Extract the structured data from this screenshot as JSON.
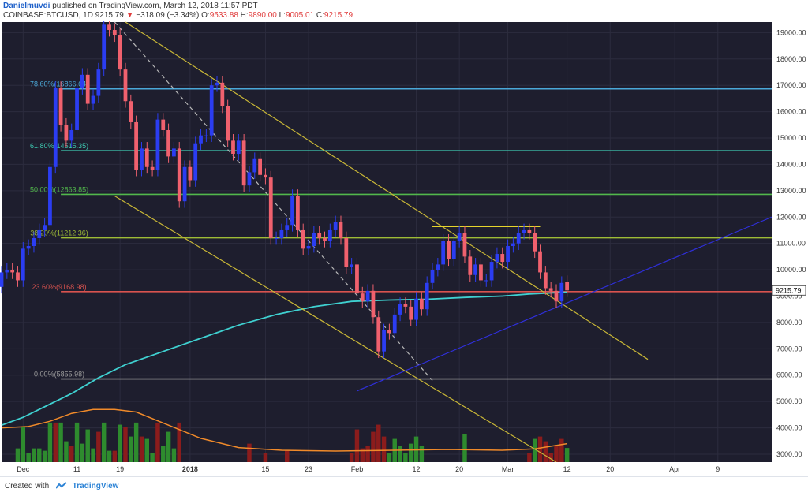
{
  "header": {
    "author": "Danielmuvdi",
    "published_text": "published on TradingView.com, March 12, 2018 11:57 PDT",
    "symbol": "COINBASE:BTCUSD, 1D",
    "last": "9215.79",
    "change": "−318.09 (−3.34%)",
    "o_label": "O:",
    "o": "9533.88",
    "h_label": "H:",
    "h": "9890.00",
    "l_label": "L:",
    "l": "9005.01",
    "c_label": "C:",
    "c": "9215.79"
  },
  "footer": {
    "created_with": "Created with",
    "brand": "TradingView"
  },
  "chart_data": {
    "type": "candlestick",
    "symbol": "COINBASE:BTCUSD",
    "interval": "1D",
    "y_ticks": [
      3000,
      4000,
      5000,
      6000,
      7000,
      8000,
      9000,
      10000,
      11000,
      12000,
      13000,
      14000,
      15000,
      16000,
      17000,
      18000,
      19000
    ],
    "ylim": [
      2700,
      19400
    ],
    "x_ticks": [
      {
        "label": "Dec",
        "date": "2017-12-01"
      },
      {
        "label": "11",
        "date": "2017-12-11"
      },
      {
        "label": "19",
        "date": "2017-12-19"
      },
      {
        "label": "2018",
        "date": "2018-01-01"
      },
      {
        "label": "15",
        "date": "2018-01-15"
      },
      {
        "label": "23",
        "date": "2018-01-23"
      },
      {
        "label": "Feb",
        "date": "2018-02-01"
      },
      {
        "label": "12",
        "date": "2018-02-12"
      },
      {
        "label": "20",
        "date": "2018-02-20"
      },
      {
        "label": "Mar",
        "date": "2018-03-01"
      },
      {
        "label": "12",
        "date": "2018-03-12"
      },
      {
        "label": "20",
        "date": "2018-03-20"
      },
      {
        "label": "Apr",
        "date": "2018-04-01"
      },
      {
        "label": "9",
        "date": "2018-04-09"
      }
    ],
    "xlim": [
      "2017-11-27",
      "2018-04-19"
    ],
    "last_price_label": "9215.79",
    "fib_levels": [
      {
        "label": "78.60%(16866.64)",
        "value": 16866.64,
        "color": "#4aa8d8"
      },
      {
        "label": "61.80%(14515.35)",
        "value": 14515.35,
        "color": "#3ec9b2"
      },
      {
        "label": "50.00%(12863.85)",
        "value": 12863.85,
        "color": "#52b84c"
      },
      {
        "label": "38.20%(11212.36)",
        "value": 11212.36,
        "color": "#9ebc36"
      },
      {
        "label": "23.60%(9168.98)",
        "value": 9168.98,
        "color": "#d9534f"
      },
      {
        "label": "0.00%(5855.98)",
        "value": 5855.98,
        "color": "#9a9a9a"
      }
    ],
    "trendlines": [
      {
        "name": "upper-channel",
        "color": "#c9b737",
        "from": [
          "2017-12-20",
          19400
        ],
        "to": [
          "2018-03-27",
          6600
        ]
      },
      {
        "name": "lower-channel",
        "color": "#c9b737",
        "from": [
          "2017-12-18",
          12800
        ],
        "to": [
          "2018-03-10",
          2700
        ]
      },
      {
        "name": "dashed-trend",
        "color": "#b8b8b8",
        "from": [
          "2017-12-18",
          19400
        ],
        "to": [
          "2018-02-15",
          5800
        ]
      },
      {
        "name": "support",
        "color": "#2f2fd8",
        "from": [
          "2018-02-01",
          5400
        ],
        "to": [
          "2018-04-19",
          12000
        ]
      },
      {
        "name": "resistance",
        "color": "#e6d52c",
        "from": [
          "2018-02-15",
          11650
        ],
        "to": [
          "2018-03-07",
          11650
        ]
      }
    ],
    "ma_price": [
      [
        "2017-11-27",
        4100
      ],
      [
        "2017-12-01",
        4400
      ],
      [
        "2017-12-05",
        4800
      ],
      [
        "2017-12-10",
        5300
      ],
      [
        "2017-12-15",
        5900
      ],
      [
        "2017-12-20",
        6400
      ],
      [
        "2017-12-27",
        6900
      ],
      [
        "2018-01-03",
        7400
      ],
      [
        "2018-01-10",
        7900
      ],
      [
        "2018-01-17",
        8300
      ],
      [
        "2018-01-24",
        8600
      ],
      [
        "2018-01-31",
        8800
      ],
      [
        "2018-02-07",
        8850
      ],
      [
        "2018-02-14",
        8880
      ],
      [
        "2018-02-21",
        8950
      ],
      [
        "2018-02-28",
        9000
      ],
      [
        "2018-03-05",
        9080
      ],
      [
        "2018-03-12",
        9150
      ]
    ],
    "volume_ma": [
      [
        "2017-11-27",
        4000
      ],
      [
        "2017-12-02",
        4050
      ],
      [
        "2017-12-06",
        4250
      ],
      [
        "2017-12-10",
        4550
      ],
      [
        "2017-12-14",
        4700
      ],
      [
        "2017-12-18",
        4700
      ],
      [
        "2017-12-22",
        4600
      ],
      [
        "2017-12-28",
        4100
      ],
      [
        "2018-01-03",
        3600
      ],
      [
        "2018-01-10",
        3250
      ],
      [
        "2018-01-18",
        3150
      ],
      [
        "2018-01-28",
        3120
      ],
      [
        "2018-02-08",
        3150
      ],
      [
        "2018-02-18",
        3180
      ],
      [
        "2018-02-28",
        3150
      ],
      [
        "2018-03-06",
        3200
      ],
      [
        "2018-03-12",
        3400
      ]
    ],
    "candles": [
      {
        "d": "2017-11-27",
        "o": 9350,
        "c": 9900
      },
      {
        "d": "2017-11-28",
        "o": 9900,
        "c": 10000
      },
      {
        "d": "2017-11-29",
        "o": 10000,
        "c": 9900
      },
      {
        "d": "2017-11-30",
        "o": 9900,
        "c": 9600
      },
      {
        "d": "2017-12-01",
        "o": 9600,
        "c": 10800
      },
      {
        "d": "2017-12-02",
        "o": 10800,
        "c": 10900
      },
      {
        "d": "2017-12-03",
        "o": 10900,
        "c": 11200
      },
      {
        "d": "2017-12-04",
        "o": 11200,
        "c": 11500
      },
      {
        "d": "2017-12-05",
        "o": 11500,
        "c": 11700
      },
      {
        "d": "2017-12-06",
        "o": 11700,
        "c": 13900
      },
      {
        "d": "2017-12-07",
        "o": 13900,
        "c": 16900
      },
      {
        "d": "2017-12-08",
        "o": 16900,
        "c": 15500
      },
      {
        "d": "2017-12-09",
        "o": 15500,
        "c": 14900
      },
      {
        "d": "2017-12-10",
        "o": 14900,
        "c": 15300
      },
      {
        "d": "2017-12-11",
        "o": 15300,
        "c": 16900
      },
      {
        "d": "2017-12-12",
        "o": 16900,
        "c": 17400
      },
      {
        "d": "2017-12-13",
        "o": 17400,
        "c": 16300
      },
      {
        "d": "2017-12-14",
        "o": 16300,
        "c": 16600
      },
      {
        "d": "2017-12-15",
        "o": 16600,
        "c": 17600
      },
      {
        "d": "2017-12-16",
        "o": 17600,
        "c": 19300
      },
      {
        "d": "2017-12-17",
        "o": 19300,
        "c": 19100
      },
      {
        "d": "2017-12-18",
        "o": 19100,
        "c": 18900
      },
      {
        "d": "2017-12-19",
        "o": 18900,
        "c": 17600
      },
      {
        "d": "2017-12-20",
        "o": 17600,
        "c": 16400
      },
      {
        "d": "2017-12-21",
        "o": 16400,
        "c": 15600
      },
      {
        "d": "2017-12-22",
        "o": 15600,
        "c": 13800
      },
      {
        "d": "2017-12-23",
        "o": 13800,
        "c": 14600
      },
      {
        "d": "2017-12-24",
        "o": 14600,
        "c": 13900
      },
      {
        "d": "2017-12-25",
        "o": 13900,
        "c": 13800
      },
      {
        "d": "2017-12-26",
        "o": 13800,
        "c": 15700
      },
      {
        "d": "2017-12-27",
        "o": 15700,
        "c": 15300
      },
      {
        "d": "2017-12-28",
        "o": 15300,
        "c": 14300
      },
      {
        "d": "2017-12-29",
        "o": 14300,
        "c": 14600
      },
      {
        "d": "2017-12-30",
        "o": 14600,
        "c": 12600
      },
      {
        "d": "2017-12-31",
        "o": 12600,
        "c": 13900
      },
      {
        "d": "2018-01-01",
        "o": 13900,
        "c": 13400
      },
      {
        "d": "2018-01-02",
        "o": 13400,
        "c": 14800
      },
      {
        "d": "2018-01-03",
        "o": 14800,
        "c": 15100
      },
      {
        "d": "2018-01-04",
        "o": 15100,
        "c": 15100
      },
      {
        "d": "2018-01-05",
        "o": 15100,
        "c": 17000
      },
      {
        "d": "2018-01-06",
        "o": 17000,
        "c": 17100
      },
      {
        "d": "2018-01-07",
        "o": 17100,
        "c": 16200
      },
      {
        "d": "2018-01-08",
        "o": 16200,
        "c": 14900
      },
      {
        "d": "2018-01-09",
        "o": 14900,
        "c": 14400
      },
      {
        "d": "2018-01-10",
        "o": 14400,
        "c": 14900
      },
      {
        "d": "2018-01-11",
        "o": 14900,
        "c": 13200
      },
      {
        "d": "2018-01-12",
        "o": 13200,
        "c": 13700
      },
      {
        "d": "2018-01-13",
        "o": 13700,
        "c": 14200
      },
      {
        "d": "2018-01-14",
        "o": 14200,
        "c": 13600
      },
      {
        "d": "2018-01-15",
        "o": 13600,
        "c": 13500
      },
      {
        "d": "2018-01-16",
        "o": 13500,
        "c": 11200
      },
      {
        "d": "2018-01-17",
        "o": 11200,
        "c": 11200
      },
      {
        "d": "2018-01-18",
        "o": 11200,
        "c": 11500
      },
      {
        "d": "2018-01-19",
        "o": 11500,
        "c": 11700
      },
      {
        "d": "2018-01-20",
        "o": 11700,
        "c": 12800
      },
      {
        "d": "2018-01-21",
        "o": 12800,
        "c": 11500
      },
      {
        "d": "2018-01-22",
        "o": 11500,
        "c": 10800
      },
      {
        "d": "2018-01-23",
        "o": 10800,
        "c": 10900
      },
      {
        "d": "2018-01-24",
        "o": 10900,
        "c": 11400
      },
      {
        "d": "2018-01-25",
        "o": 11400,
        "c": 11200
      },
      {
        "d": "2018-01-26",
        "o": 11200,
        "c": 11100
      },
      {
        "d": "2018-01-27",
        "o": 11100,
        "c": 11500
      },
      {
        "d": "2018-01-28",
        "o": 11500,
        "c": 11800
      },
      {
        "d": "2018-01-29",
        "o": 11800,
        "c": 11200
      },
      {
        "d": "2018-01-30",
        "o": 11200,
        "c": 10100
      },
      {
        "d": "2018-01-31",
        "o": 10100,
        "c": 10200
      },
      {
        "d": "2018-02-01",
        "o": 10200,
        "c": 9100
      },
      {
        "d": "2018-02-02",
        "o": 9100,
        "c": 8800
      },
      {
        "d": "2018-02-03",
        "o": 8800,
        "c": 9200
      },
      {
        "d": "2018-02-04",
        "o": 9200,
        "c": 8200
      },
      {
        "d": "2018-02-05",
        "o": 8200,
        "c": 6900
      },
      {
        "d": "2018-02-06",
        "o": 6900,
        "c": 7700
      },
      {
        "d": "2018-02-07",
        "o": 7700,
        "c": 7600
      },
      {
        "d": "2018-02-08",
        "o": 7600,
        "c": 8300
      },
      {
        "d": "2018-02-09",
        "o": 8300,
        "c": 8700
      },
      {
        "d": "2018-02-10",
        "o": 8700,
        "c": 8600
      },
      {
        "d": "2018-02-11",
        "o": 8600,
        "c": 8100
      },
      {
        "d": "2018-02-12",
        "o": 8100,
        "c": 8900
      },
      {
        "d": "2018-02-13",
        "o": 8900,
        "c": 8500
      },
      {
        "d": "2018-02-14",
        "o": 8500,
        "c": 9500
      },
      {
        "d": "2018-02-15",
        "o": 9500,
        "c": 10000
      },
      {
        "d": "2018-02-16",
        "o": 10000,
        "c": 10200
      },
      {
        "d": "2018-02-17",
        "o": 10200,
        "c": 11100
      },
      {
        "d": "2018-02-18",
        "o": 11100,
        "c": 10400
      },
      {
        "d": "2018-02-19",
        "o": 10400,
        "c": 11100
      },
      {
        "d": "2018-02-20",
        "o": 11100,
        "c": 11400
      },
      {
        "d": "2018-02-21",
        "o": 11400,
        "c": 10500
      },
      {
        "d": "2018-02-22",
        "o": 10500,
        "c": 9800
      },
      {
        "d": "2018-02-23",
        "o": 9800,
        "c": 10200
      },
      {
        "d": "2018-02-24",
        "o": 10200,
        "c": 9600
      },
      {
        "d": "2018-02-25",
        "o": 9600,
        "c": 9600
      },
      {
        "d": "2018-02-26",
        "o": 9600,
        "c": 10300
      },
      {
        "d": "2018-02-27",
        "o": 10300,
        "c": 10600
      },
      {
        "d": "2018-02-28",
        "o": 10600,
        "c": 10300
      },
      {
        "d": "2018-03-01",
        "o": 10300,
        "c": 10900
      },
      {
        "d": "2018-03-02",
        "o": 10900,
        "c": 11000
      },
      {
        "d": "2018-03-03",
        "o": 11000,
        "c": 11400
      },
      {
        "d": "2018-03-04",
        "o": 11400,
        "c": 11500
      },
      {
        "d": "2018-03-05",
        "o": 11500,
        "c": 11400
      },
      {
        "d": "2018-03-06",
        "o": 11400,
        "c": 10700
      },
      {
        "d": "2018-03-07",
        "o": 10700,
        "c": 9900
      },
      {
        "d": "2018-03-08",
        "o": 9900,
        "c": 9300
      },
      {
        "d": "2018-03-09",
        "o": 9300,
        "c": 9200
      },
      {
        "d": "2018-03-10",
        "o": 9200,
        "c": 8800
      },
      {
        "d": "2018-03-11",
        "o": 8800,
        "c": 9500
      },
      {
        "d": "2018-03-12",
        "o": 9533.88,
        "c": 9215.79
      }
    ],
    "volume_red_indexes": [
      10,
      13,
      18,
      21,
      23,
      26,
      29,
      33,
      46,
      49,
      53,
      65,
      66,
      67,
      68,
      69,
      70,
      71,
      98,
      100,
      101,
      102,
      103,
      104,
      106
    ],
    "volume_green_indexes": [
      3,
      4,
      5,
      6,
      7,
      8,
      9,
      11,
      12,
      14,
      15,
      16,
      17,
      19,
      20,
      22,
      24,
      25,
      27,
      28,
      30,
      31,
      32,
      72,
      73,
      74,
      75,
      76,
      77,
      78,
      86,
      99,
      105
    ],
    "colors": {
      "background": "#1e1e2e",
      "up": "#2b3df2",
      "down": "#f0616e",
      "volume_up": "#2e8b2e",
      "volume_down": "#8b1c1c",
      "ma_price": "#3fd1d1",
      "volume_ma": "#f08a2a",
      "axis_bg": "#ffffff",
      "axis_text": "#333333"
    }
  }
}
